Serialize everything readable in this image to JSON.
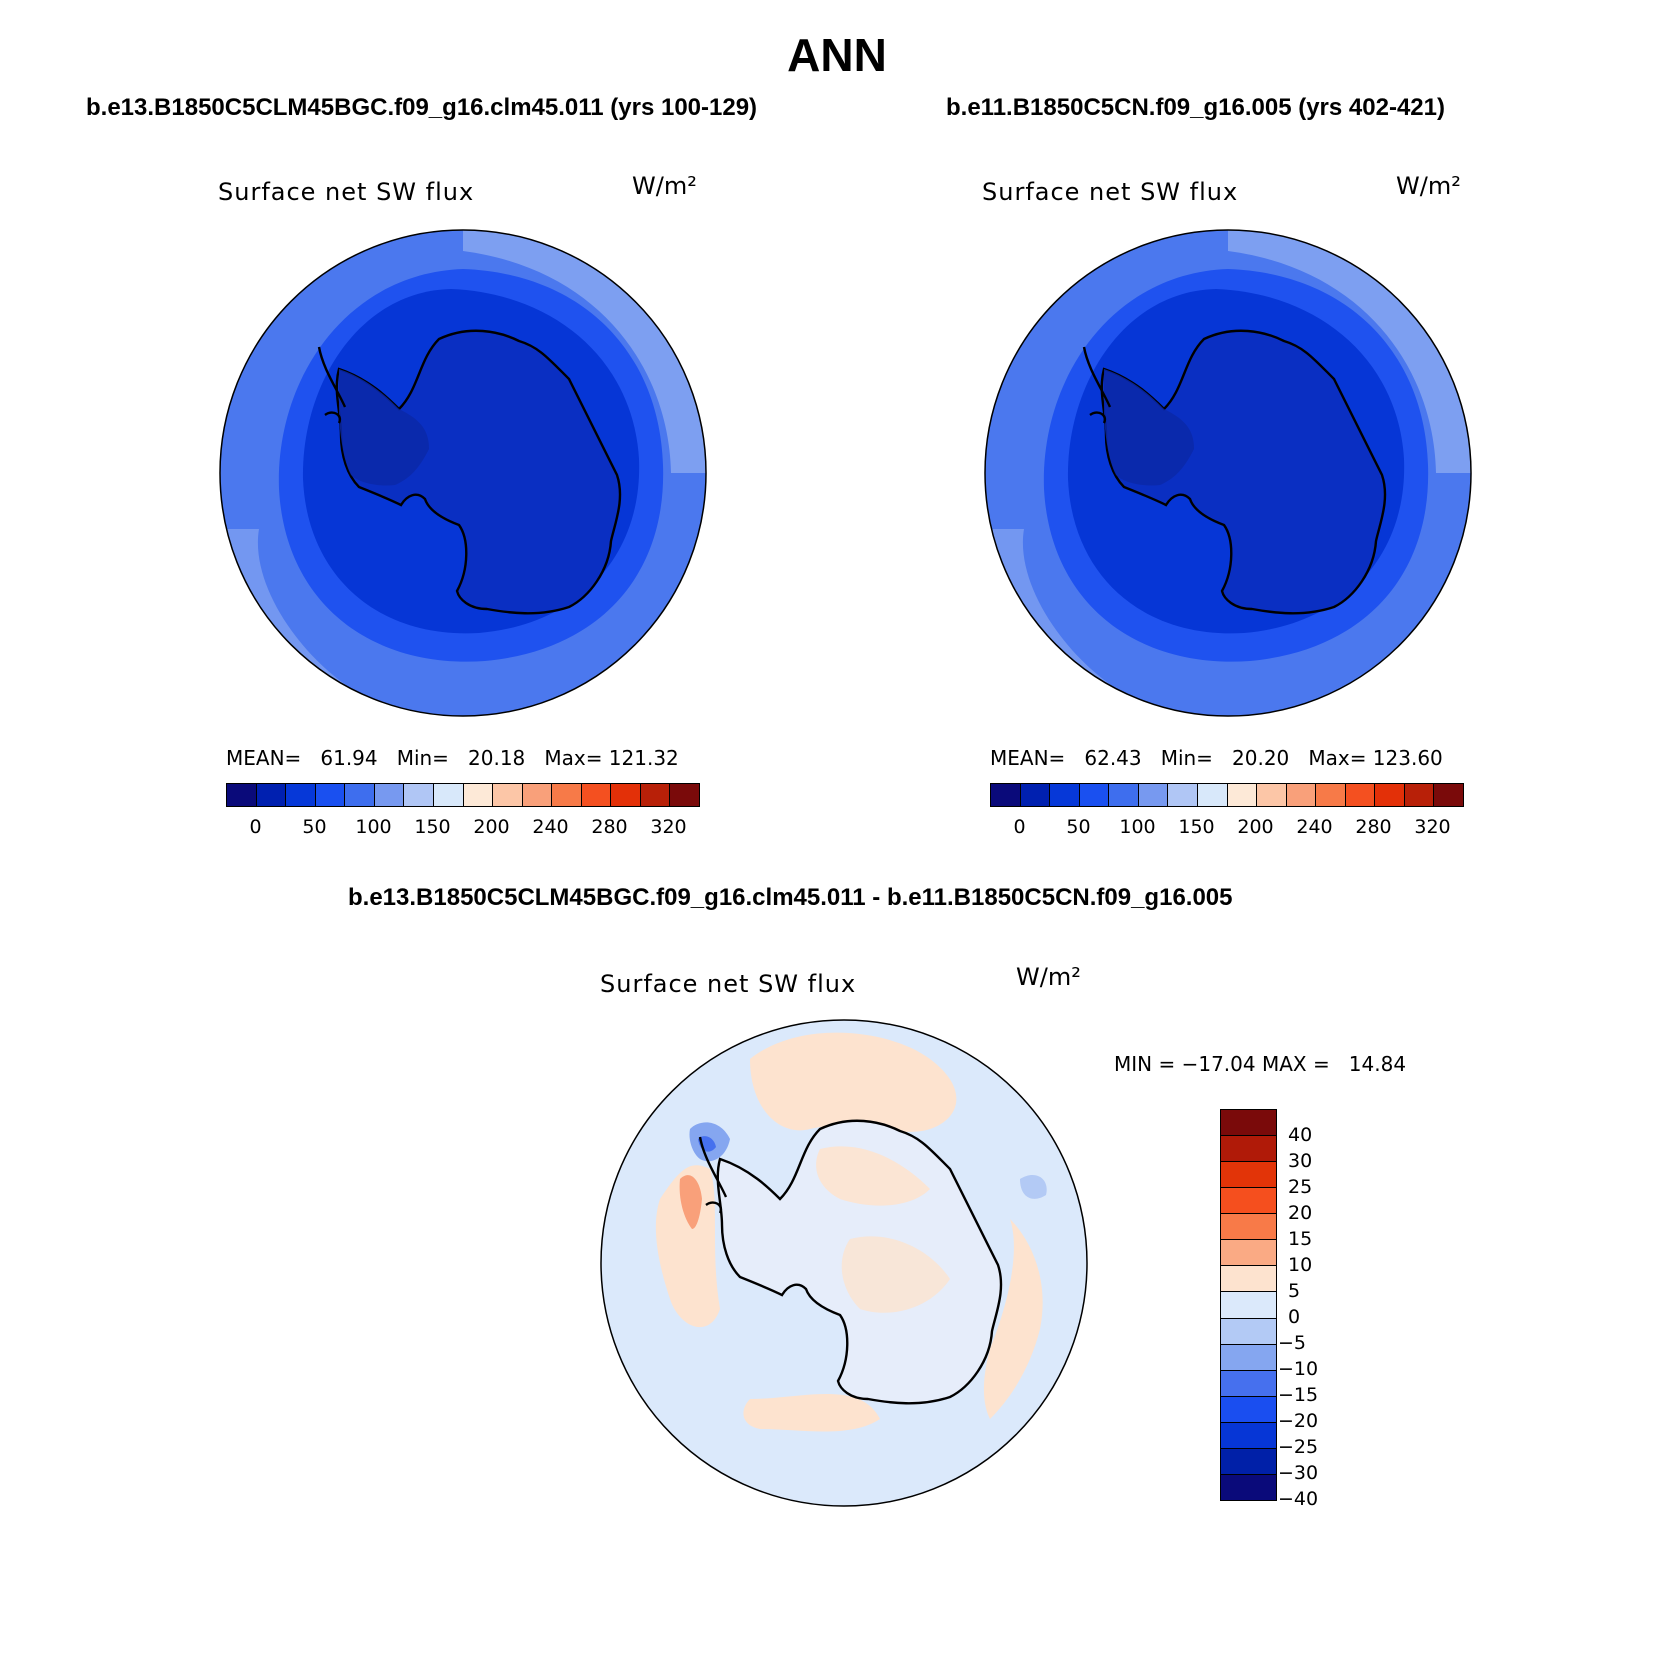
{
  "title": "ANN",
  "panels": [
    {
      "case": "b.e13.B1850C5CLM45BGC.f09_g16.clm45.011 (yrs 100-129)",
      "variable": "Surface net SW flux",
      "units": "W/m²",
      "stats": "MEAN=   61.94   Min=   20.18   Max= 121.32"
    },
    {
      "case": "b.e11.B1850C5CN.f09_g16.005 (yrs 402-421)",
      "variable": "Surface net SW flux",
      "units": "W/m²",
      "stats": "MEAN=   62.43   Min=   20.20   Max= 123.60"
    }
  ],
  "diff": {
    "case": "b.e13.B1850C5CLM45BGC.f09_g16.clm45.011 - b.e11.B1850C5CN.f09_g16.005",
    "variable": "Surface net SW flux",
    "units": "W/m²",
    "stats": "MIN = −17.04 MAX =   14.84"
  },
  "colorbar_main": {
    "colors": [
      "#0a0a7a",
      "#0020b0",
      "#0638d8",
      "#1a50f0",
      "#3e6eee",
      "#7799f0",
      "#b0c6f5",
      "#d8e8fa",
      "#fde9d7",
      "#fcc6a7",
      "#f9a07a",
      "#f77a48",
      "#f45020",
      "#e33008",
      "#b82008",
      "#7a0a0a"
    ],
    "ticks": [
      "0",
      "50",
      "100",
      "150",
      "200",
      "240",
      "280",
      "320"
    ]
  },
  "colorbar_diff": {
    "colors": [
      "#7a0a0a",
      "#b01a08",
      "#e23408",
      "#f54f1e",
      "#f87a48",
      "#faaa84",
      "#fde3cf",
      "#dbe9fb",
      "#b3caf5",
      "#85a6f0",
      "#4670ee",
      "#1a4ef0",
      "#0636d6",
      "#0020a8",
      "#0a0a7a"
    ],
    "ticks": [
      "40",
      "30",
      "25",
      "20",
      "15",
      "10",
      "5",
      "0",
      "−5",
      "−10",
      "−15",
      "−20",
      "−25",
      "−30",
      "−40"
    ]
  }
}
